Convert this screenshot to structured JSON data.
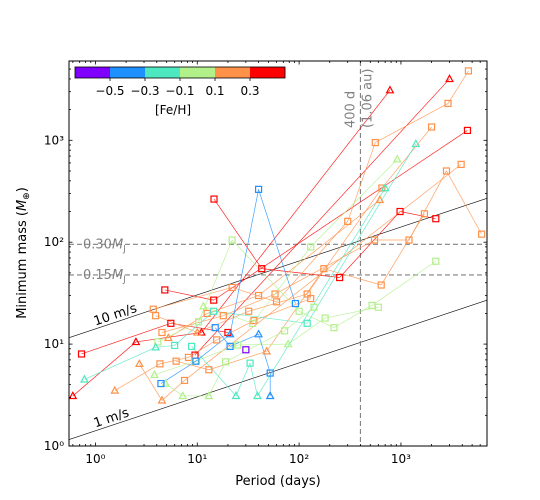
{
  "chart_data": {
    "type": "scatter",
    "title": "",
    "xlabel": "Period (days)",
    "ylabel": "Minimum mass (M⊕)",
    "xscale": "log",
    "yscale": "log",
    "xlim": [
      0.55,
      7000
    ],
    "ylim": [
      1,
      6000
    ],
    "x_ticks": [
      1,
      10,
      100,
      1000
    ],
    "x_tick_labels": [
      "10⁰",
      "10¹",
      "10²",
      "10³"
    ],
    "y_ticks": [
      1,
      10,
      100,
      1000
    ],
    "y_tick_labels": [
      "10⁰",
      "10¹",
      "10²",
      "10³"
    ],
    "grid": false,
    "colorbar": {
      "label": "[Fe/H]",
      "location": "top-left",
      "colors": [
        "#8000ff",
        "#1e90ff",
        "#4de8c0",
        "#b2f08a",
        "#ff9148",
        "#ff0000"
      ],
      "tick_labels": [
        "−0.5",
        "−0.3",
        "−0.1",
        "0.1",
        "0.3"
      ]
    },
    "reference_lines": [
      {
        "type": "horizontal",
        "y": 95.4,
        "label": "0.30M",
        "sub": "J",
        "style": "dashed",
        "color": "#808080"
      },
      {
        "type": "horizontal",
        "y": 47.7,
        "label": "0.15M",
        "sub": "J",
        "style": "dashed",
        "color": "#808080"
      },
      {
        "type": "vertical",
        "x": 400,
        "label": "400 d",
        "label2": "(1.06 au)",
        "style": "dashed",
        "color": "#808080"
      },
      {
        "type": "rv_semi_amplitude",
        "label": "10 m/s",
        "y_at_p1": 14.1,
        "slope": 0.3333,
        "color": "#000000"
      },
      {
        "type": "rv_semi_amplitude",
        "label": "1 m/s",
        "y_at_p1": 1.41,
        "slope": 0.3333,
        "color": "#000000"
      }
    ],
    "markers": [
      "square",
      "triangle"
    ],
    "systems": [
      {
        "color": "#ff0000",
        "points": [
          {
            "x": 0.73,
            "y": 8,
            "m": "s"
          },
          {
            "x": 5.5,
            "y": 16,
            "m": "s"
          },
          {
            "x": 20,
            "y": 13,
            "m": "s"
          }
        ]
      },
      {
        "color": "#ff0000",
        "points": [
          {
            "x": 0.6,
            "y": 3.1,
            "m": "t"
          },
          {
            "x": 2.5,
            "y": 10.5,
            "m": "t"
          },
          {
            "x": 11,
            "y": 13,
            "m": "t"
          },
          {
            "x": 780,
            "y": 3100,
            "m": "t"
          }
        ]
      },
      {
        "color": "#ff0000",
        "points": [
          {
            "x": 14.6,
            "y": 265,
            "m": "s"
          },
          {
            "x": 43,
            "y": 55,
            "m": "s"
          },
          {
            "x": 250,
            "y": 45,
            "m": "s"
          },
          {
            "x": 980,
            "y": 200,
            "m": "s"
          },
          {
            "x": 2200,
            "y": 170,
            "m": "s"
          }
        ]
      },
      {
        "color": "#ff0000",
        "points": [
          {
            "x": 4.8,
            "y": 34,
            "m": "s"
          },
          {
            "x": 14.5,
            "y": 27,
            "m": "s"
          },
          {
            "x": 4500,
            "y": 1250,
            "m": "s"
          }
        ]
      },
      {
        "color": "#ff0000",
        "points": [
          {
            "x": 9.5,
            "y": 7.8,
            "m": "s"
          },
          {
            "x": 3000,
            "y": 4000,
            "m": "t"
          }
        ]
      },
      {
        "color": "#ff9148",
        "points": [
          {
            "x": 3.7,
            "y": 22,
            "m": "s"
          },
          {
            "x": 22,
            "y": 36,
            "m": "s"
          },
          {
            "x": 60,
            "y": 26,
            "m": "s"
          },
          {
            "x": 300,
            "y": 160,
            "m": "s"
          },
          {
            "x": 560,
            "y": 950,
            "m": "s"
          },
          {
            "x": 2900,
            "y": 2300,
            "m": "s"
          },
          {
            "x": 4600,
            "y": 4800,
            "m": "s"
          }
        ]
      },
      {
        "color": "#ff9148",
        "points": [
          {
            "x": 3.9,
            "y": 19,
            "m": "s"
          },
          {
            "x": 10,
            "y": 13,
            "m": "t"
          },
          {
            "x": 32,
            "y": 21,
            "m": "s"
          },
          {
            "x": 120,
            "y": 31,
            "m": "s"
          },
          {
            "x": 650,
            "y": 340,
            "m": "s"
          },
          {
            "x": 2000,
            "y": 1350,
            "m": "s"
          }
        ]
      },
      {
        "color": "#ff9148",
        "points": [
          {
            "x": 1.55,
            "y": 3.5,
            "m": "t"
          },
          {
            "x": 4.3,
            "y": 6.4,
            "m": "s"
          },
          {
            "x": 8.2,
            "y": 7.4,
            "m": "s"
          },
          {
            "x": 15.5,
            "y": 11,
            "m": "s"
          },
          {
            "x": 36,
            "y": 17,
            "m": "s"
          },
          {
            "x": 130,
            "y": 28,
            "m": "s"
          }
        ]
      },
      {
        "color": "#ff9148",
        "points": [
          {
            "x": 4.5,
            "y": 13,
            "m": "s"
          },
          {
            "x": 18,
            "y": 19,
            "m": "s"
          },
          {
            "x": 58,
            "y": 31,
            "m": "s"
          },
          {
            "x": 550,
            "y": 105,
            "m": "s"
          },
          {
            "x": 1200,
            "y": 105,
            "m": "s"
          },
          {
            "x": 2800,
            "y": 500,
            "m": "s"
          },
          {
            "x": 6200,
            "y": 120,
            "m": "s"
          }
        ]
      },
      {
        "color": "#ff9148",
        "points": [
          {
            "x": 6.2,
            "y": 6.8,
            "m": "s"
          },
          {
            "x": 13,
            "y": 5.6,
            "m": "s"
          },
          {
            "x": 48,
            "y": 8.5,
            "m": "t"
          },
          {
            "x": 175,
            "y": 55,
            "m": "s"
          },
          {
            "x": 640,
            "y": 38,
            "m": "s"
          },
          {
            "x": 1700,
            "y": 190,
            "m": "s"
          }
        ]
      },
      {
        "color": "#ff9148",
        "points": [
          {
            "x": 2.7,
            "y": 6.4,
            "m": "t"
          },
          {
            "x": 4.5,
            "y": 2.8,
            "m": "t"
          },
          {
            "x": 7.5,
            "y": 4.4,
            "m": "s"
          },
          {
            "x": 3900,
            "y": 580,
            "m": "s"
          }
        ]
      },
      {
        "color": "#ff9148",
        "points": [
          {
            "x": 5.2,
            "y": 11.5,
            "m": "t"
          },
          {
            "x": 12.5,
            "y": 20,
            "m": "s"
          },
          {
            "x": 40,
            "y": 30,
            "m": "s"
          },
          {
            "x": 620,
            "y": 260,
            "m": "t"
          }
        ]
      },
      {
        "color": "#b2f08a",
        "points": [
          {
            "x": 4.1,
            "y": 10.5,
            "m": "s"
          },
          {
            "x": 10.3,
            "y": 16.5,
            "m": "s"
          },
          {
            "x": 22,
            "y": 105,
            "m": "s"
          },
          {
            "x": 100,
            "y": 21,
            "m": "s"
          },
          {
            "x": 220,
            "y": 14.5,
            "m": "s"
          },
          {
            "x": 520,
            "y": 24,
            "m": "s"
          },
          {
            "x": 2200,
            "y": 65,
            "m": "s"
          }
        ]
      },
      {
        "color": "#b2f08a",
        "points": [
          {
            "x": 4.9,
            "y": 4.1,
            "m": "t"
          },
          {
            "x": 7.2,
            "y": 3.1,
            "m": "t"
          },
          {
            "x": 13,
            "y": 3.1,
            "m": "t"
          },
          {
            "x": 19,
            "y": 6.7,
            "m": "s"
          },
          {
            "x": 72,
            "y": 13.5,
            "m": "s"
          },
          {
            "x": 140,
            "y": 23,
            "m": "s"
          }
        ]
      },
      {
        "color": "#b2f08a",
        "points": [
          {
            "x": 3.8,
            "y": 5,
            "m": "t"
          },
          {
            "x": 9.5,
            "y": 6.8,
            "m": "s"
          },
          {
            "x": 25,
            "y": 9.8,
            "m": "s"
          },
          {
            "x": 78,
            "y": 10,
            "m": "t"
          },
          {
            "x": 180,
            "y": 18,
            "m": "s"
          },
          {
            "x": 600,
            "y": 23,
            "m": "s"
          }
        ]
      },
      {
        "color": "#b2f08a",
        "points": [
          {
            "x": 11.5,
            "y": 23.5,
            "m": "t"
          },
          {
            "x": 35,
            "y": 16,
            "m": "s"
          },
          {
            "x": 130,
            "y": 90,
            "m": "s"
          },
          {
            "x": 920,
            "y": 650,
            "m": "t"
          }
        ]
      },
      {
        "color": "#4de8c0",
        "points": [
          {
            "x": 0.78,
            "y": 4.5,
            "m": "t"
          },
          {
            "x": 3.9,
            "y": 9.3,
            "m": "t"
          },
          {
            "x": 6,
            "y": 9.7,
            "m": "s"
          },
          {
            "x": 14.5,
            "y": 21,
            "m": "s"
          },
          {
            "x": 120,
            "y": 16,
            "m": "s"
          },
          {
            "x": 1400,
            "y": 920,
            "m": "t"
          }
        ]
      },
      {
        "color": "#4de8c0",
        "points": [
          {
            "x": 8.8,
            "y": 9.5,
            "m": "s"
          },
          {
            "x": 24,
            "y": 3.1,
            "m": "t"
          },
          {
            "x": 33,
            "y": 6.5,
            "m": "s"
          },
          {
            "x": 39,
            "y": 3.1,
            "m": "t"
          },
          {
            "x": 700,
            "y": 340,
            "m": "t"
          }
        ]
      },
      {
        "color": "#1e90ff",
        "points": [
          {
            "x": 4.4,
            "y": 4.1,
            "m": "s"
          },
          {
            "x": 9.7,
            "y": 6.8,
            "m": "s"
          },
          {
            "x": 21,
            "y": 12.5,
            "m": "t"
          },
          {
            "x": 40,
            "y": 330,
            "m": "s"
          },
          {
            "x": 92,
            "y": 25,
            "m": "s"
          }
        ]
      },
      {
        "color": "#1e90ff",
        "points": [
          {
            "x": 15,
            "y": 14.5,
            "m": "s"
          },
          {
            "x": 21,
            "y": 9.5,
            "m": "s"
          },
          {
            "x": 40,
            "y": 12.5,
            "m": "t"
          },
          {
            "x": 52,
            "y": 5.2,
            "m": "s"
          },
          {
            "x": 52,
            "y": 3.1,
            "m": "t"
          }
        ]
      },
      {
        "color": "#8000ff",
        "points": [
          {
            "x": 30,
            "y": 8.8,
            "m": "s"
          }
        ]
      }
    ]
  }
}
